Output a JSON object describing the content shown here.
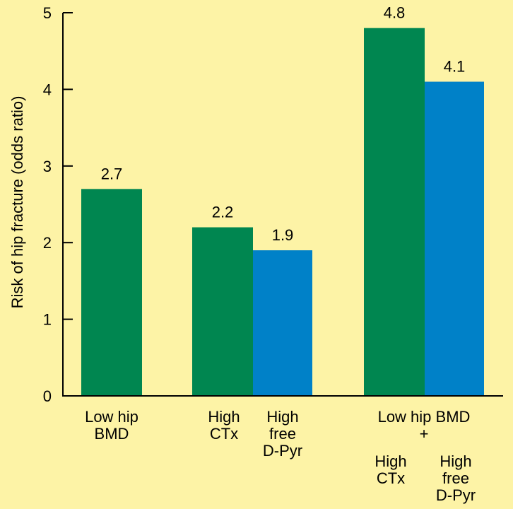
{
  "chart_data": {
    "type": "bar",
    "ylabel": "Risk of hip fracture (odds ratio)",
    "ylim": [
      0,
      5
    ],
    "yticks": [
      0,
      1,
      2,
      3,
      4,
      5
    ],
    "grid": false,
    "legend": "none",
    "colors": {
      "background": "#FDF3A6",
      "green": "#008650",
      "blue": "#0081C8",
      "axis": "#000000"
    },
    "bars": [
      {
        "value": 2.7,
        "label": "2.7",
        "color": "green"
      },
      {
        "value": 2.2,
        "label": "2.2",
        "color": "green"
      },
      {
        "value": 1.9,
        "label": "1.9",
        "color": "blue"
      },
      {
        "value": 4.8,
        "label": "4.8",
        "color": "green"
      },
      {
        "value": 4.1,
        "label": "4.1",
        "color": "blue"
      }
    ],
    "category_labels": [
      {
        "lines": [
          "Low hip",
          "BMD"
        ]
      },
      {
        "lines": [
          "High",
          "CTx"
        ]
      },
      {
        "lines": [
          "High",
          "free",
          "D-Pyr"
        ]
      },
      {
        "lines": [
          "Low hip BMD",
          "+"
        ]
      },
      {
        "lines": [
          "High",
          "CTx"
        ]
      },
      {
        "lines": [
          "High",
          "free",
          "D-Pyr"
        ]
      }
    ]
  }
}
